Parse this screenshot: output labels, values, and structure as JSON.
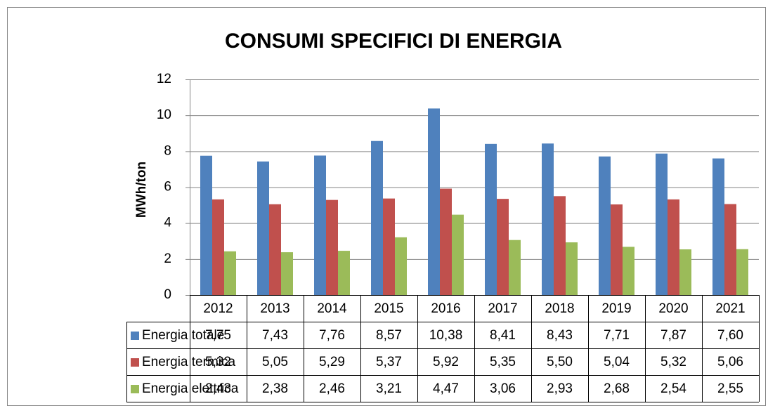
{
  "chart_data": {
    "type": "bar",
    "title": "CONSUMI SPECIFICI DI ENERGIA",
    "y_label": "MWh/ton",
    "categories": [
      "2012",
      "2013",
      "2014",
      "2015",
      "2016",
      "2017",
      "2018",
      "2019",
      "2020",
      "2021"
    ],
    "series": [
      {
        "name": "Energia totale",
        "color": "#4f81bd",
        "values": [
          7.75,
          7.43,
          7.76,
          8.57,
          10.38,
          8.41,
          8.43,
          7.71,
          7.87,
          7.6
        ],
        "value_labels": [
          "7,75",
          "7,43",
          "7,76",
          "8,57",
          "10,38",
          "8,41",
          "8,43",
          "7,71",
          "7,87",
          "7,60"
        ]
      },
      {
        "name": "Energia termica",
        "color": "#c0504d",
        "values": [
          5.32,
          5.05,
          5.29,
          5.37,
          5.92,
          5.35,
          5.5,
          5.04,
          5.32,
          5.06
        ],
        "value_labels": [
          "5,32",
          "5,05",
          "5,29",
          "5,37",
          "5,92",
          "5,35",
          "5,50",
          "5,04",
          "5,32",
          "5,06"
        ]
      },
      {
        "name": "Energia elettrica",
        "color": "#9bbb59",
        "values": [
          2.43,
          2.38,
          2.46,
          3.21,
          4.47,
          3.06,
          2.93,
          2.68,
          2.54,
          2.55
        ],
        "value_labels": [
          "2,43",
          "2,38",
          "2,46",
          "3,21",
          "4,47",
          "3,06",
          "2,93",
          "2,68",
          "2,54",
          "2,55"
        ]
      }
    ],
    "ylim": [
      0,
      12
    ],
    "yticks": [
      0,
      2,
      4,
      6,
      8,
      10,
      12
    ],
    "grid": true
  }
}
